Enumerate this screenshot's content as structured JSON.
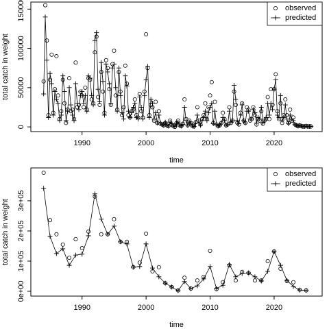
{
  "chart_data": [
    {
      "type": "line",
      "ylabel": "total catch in weight",
      "xlabel": "time",
      "x": [
        1984,
        1984.25,
        1984.5,
        1984.75,
        1985,
        1985.25,
        1985.5,
        1985.75,
        1986,
        1986.25,
        1986.5,
        1986.75,
        1987,
        1987.25,
        1987.5,
        1987.75,
        1988,
        1988.25,
        1988.5,
        1988.75,
        1989,
        1989.25,
        1989.5,
        1989.75,
        1990,
        1990.25,
        1990.5,
        1990.75,
        1991,
        1991.25,
        1991.5,
        1991.75,
        1992,
        1992.25,
        1992.5,
        1992.75,
        1993,
        1993.25,
        1993.5,
        1993.75,
        1994,
        1994.25,
        1994.5,
        1994.75,
        1995,
        1995.25,
        1995.5,
        1995.75,
        1996,
        1996.25,
        1996.5,
        1996.75,
        1997,
        1997.25,
        1997.5,
        1997.75,
        1998,
        1998.25,
        1998.5,
        1998.75,
        1999,
        1999.25,
        1999.5,
        1999.75,
        2000,
        2000.25,
        2000.5,
        2000.75,
        2001,
        2001.25,
        2001.5,
        2001.75,
        2002,
        2002.25,
        2002.5,
        2002.75,
        2003,
        2003.25,
        2003.5,
        2003.75,
        2004,
        2004.25,
        2004.5,
        2004.75,
        2005,
        2005.25,
        2005.5,
        2005.75,
        2006,
        2006.25,
        2006.5,
        2006.75,
        2007,
        2007.25,
        2007.5,
        2007.75,
        2008,
        2008.25,
        2008.5,
        2008.75,
        2009,
        2009.25,
        2009.5,
        2009.75,
        2010,
        2010.25,
        2010.5,
        2010.75,
        2011,
        2011.25,
        2011.5,
        2011.75,
        2012,
        2012.25,
        2012.5,
        2012.75,
        2013,
        2013.25,
        2013.5,
        2013.75,
        2014,
        2014.25,
        2014.5,
        2014.75,
        2015,
        2015.25,
        2015.5,
        2015.75,
        2016,
        2016.25,
        2016.5,
        2016.75,
        2017,
        2017.25,
        2017.5,
        2017.75,
        2018,
        2018.25,
        2018.5,
        2018.75,
        2019,
        2019.25,
        2019.5,
        2019.75,
        2020,
        2020.25,
        2020.5,
        2020.75,
        2021,
        2021.25,
        2021.5,
        2021.75,
        2022,
        2022.25,
        2022.5,
        2022.75,
        2023,
        2023.25,
        2023.5,
        2023.75,
        2024,
        2024.25,
        2024.5,
        2024.75,
        2025,
        2025.25,
        2025.5,
        2025.75
      ],
      "series": [
        {
          "name": "observed",
          "color": "#000000",
          "marker": "circle",
          "line": false,
          "values": [
            58000,
            155000,
            110000,
            15000,
            60000,
            92000,
            18000,
            48000,
            90000,
            40000,
            10000,
            20000,
            60000,
            30000,
            5000,
            22000,
            62000,
            20000,
            22000,
            10000,
            82000,
            25000,
            28000,
            45000,
            40000,
            25000,
            50000,
            22000,
            62000,
            60000,
            35000,
            30000,
            95000,
            115000,
            38000,
            28000,
            70000,
            45000,
            18000,
            85000,
            75000,
            48000,
            28000,
            80000,
            97000,
            40000,
            22000,
            70000,
            45000,
            15000,
            25000,
            78000,
            55000,
            15000,
            12000,
            20000,
            22000,
            35000,
            15000,
            12000,
            42000,
            20000,
            12000,
            45000,
            118000,
            75000,
            15000,
            28000,
            25000,
            8000,
            32000,
            5000,
            20000,
            4000,
            3000,
            2000,
            5000,
            2000,
            1000,
            8000,
            3000,
            1000,
            0,
            5000,
            8000,
            2000,
            1000,
            4000,
            35000,
            10000,
            2000,
            8000,
            5000,
            1000,
            500,
            6000,
            25000,
            8000,
            3000,
            10000,
            15000,
            30000,
            10000,
            25000,
            40000,
            57000,
            5000,
            32000,
            3000,
            1000,
            2000,
            5000,
            18000,
            10000,
            2000,
            3000,
            25000,
            5000,
            8000,
            45000,
            28000,
            5000,
            3000,
            18000,
            30000,
            8000,
            5000,
            25000,
            22000,
            8000,
            10000,
            25000,
            15000,
            3000,
            10000,
            8000,
            20000,
            4000,
            8000,
            10000,
            38000,
            10000,
            48000,
            28000,
            48000,
            67000,
            20000,
            10000,
            30000,
            5000,
            15000,
            35000,
            15000,
            5000,
            22000,
            8000,
            12000,
            3000,
            2000,
            1000,
            2000,
            1000,
            500,
            500,
            1000,
            500,
            500,
            500
          ]
        },
        {
          "name": "predicted",
          "color": "#000000",
          "marker": "plus",
          "line": true,
          "values": [
            42000,
            140000,
            85000,
            12000,
            68000,
            55000,
            15000,
            45000,
            35000,
            30000,
            8000,
            15000,
            65000,
            45000,
            8000,
            20000,
            50000,
            28000,
            15000,
            8000,
            55000,
            30000,
            22000,
            40000,
            45000,
            30000,
            40000,
            20000,
            65000,
            62000,
            40000,
            28000,
            110000,
            120000,
            48000,
            32000,
            82000,
            58000,
            15000,
            80000,
            70000,
            55000,
            30000,
            75000,
            80000,
            50000,
            20000,
            75000,
            40000,
            18000,
            10000,
            65000,
            52000,
            20000,
            12000,
            18000,
            25000,
            30000,
            12000,
            10000,
            38000,
            25000,
            10000,
            40000,
            60000,
            77000,
            12000,
            35000,
            30000,
            10000,
            18000,
            5000,
            15000,
            5000,
            3000,
            2000,
            6000,
            2000,
            1000,
            6000,
            4000,
            1000,
            500,
            4000,
            6000,
            2000,
            1000,
            3000,
            25000,
            8000,
            2000,
            6000,
            4000,
            1000,
            500,
            5000,
            15000,
            5000,
            2000,
            8000,
            12000,
            20000,
            8000,
            18000,
            25000,
            30000,
            4000,
            20000,
            3000,
            1000,
            2000,
            5000,
            12000,
            8000,
            2000,
            3000,
            20000,
            6000,
            8000,
            53000,
            35000,
            8000,
            4000,
            15000,
            28000,
            8000,
            5000,
            20000,
            20000,
            10000,
            10000,
            22000,
            18000,
            5000,
            12000,
            10000,
            25000,
            5000,
            8000,
            12000,
            30000,
            15000,
            30000,
            22000,
            48000,
            60000,
            15000,
            12000,
            40000,
            8000,
            12000,
            28000,
            10000,
            4000,
            15000,
            10000,
            8000,
            3000,
            2000,
            1000,
            2000,
            1000,
            500,
            500,
            1000,
            500,
            500,
            500
          ]
        }
      ],
      "xlim": [
        1982,
        2027.5
      ],
      "xticks": [
        1990,
        2000,
        2010,
        2020
      ],
      "ylim": [
        -6000,
        159000
      ],
      "yticks": [
        0,
        50000,
        100000,
        150000
      ],
      "legend": "top-right"
    },
    {
      "type": "line",
      "ylabel": "total catch in weight",
      "xlabel": "time",
      "x": [
        1984,
        1985,
        1986,
        1987,
        1988,
        1989,
        1990,
        1991,
        1992,
        1993,
        1994,
        1995,
        1996,
        1997,
        1998,
        1999,
        2000,
        2001,
        2002,
        2003,
        2004,
        2005,
        2006,
        2007,
        2008,
        2009,
        2010,
        2011,
        2012,
        2013,
        2014,
        2015,
        2016,
        2017,
        2018,
        2019,
        2020,
        2021,
        2022,
        2023,
        2024,
        2025
      ],
      "series": [
        {
          "name": "observed",
          "color": "#000000",
          "marker": "circle",
          "line": false,
          "values": [
            393000,
            236000,
            189000,
            155000,
            111000,
            173000,
            143000,
            198000,
            314000,
            189000,
            189000,
            239000,
            164000,
            164000,
            80000,
            95000,
            191000,
            66000,
            80000,
            27000,
            14000,
            3000,
            45000,
            9000,
            36000,
            48000,
            134000,
            7000,
            30000,
            86000,
            36000,
            64000,
            61000,
            36000,
            36000,
            100000,
            132000,
            75000,
            34000,
            30000,
            5000,
            3000
          ]
        },
        {
          "name": "predicted",
          "color": "#000000",
          "marker": "plus",
          "line": true,
          "values": [
            341000,
            182000,
            125000,
            141000,
            86000,
            120000,
            123000,
            184000,
            323000,
            239000,
            189000,
            216000,
            164000,
            157000,
            80000,
            82000,
            157000,
            77000,
            48000,
            27000,
            14000,
            2000,
            32000,
            9000,
            18000,
            41000,
            82000,
            9000,
            20000,
            89000,
            48000,
            59000,
            61000,
            48000,
            34000,
            66000,
            132000,
            86000,
            36000,
            16000,
            4000,
            3000
          ]
        }
      ],
      "xlim": [
        1982,
        2027.5
      ],
      "xticks": [
        1990,
        2000,
        2010,
        2020
      ],
      "ylim": [
        -16000,
        409000
      ],
      "yticks": [
        {
          "value": 0,
          "label": "0e+00"
        },
        {
          "value": 100000,
          "label": "1e+05"
        },
        {
          "value": 200000,
          "label": "2e+05"
        },
        {
          "value": 300000,
          "label": "3e+05"
        }
      ],
      "legend": "top-right"
    }
  ]
}
